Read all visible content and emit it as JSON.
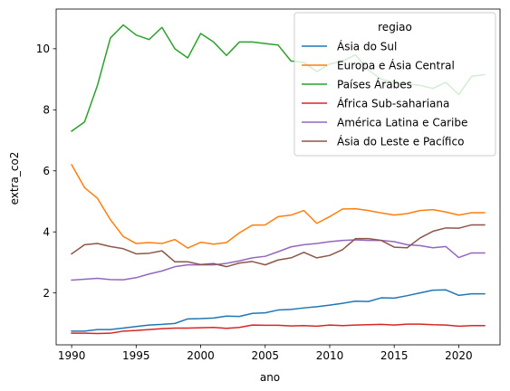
{
  "chart_data": {
    "type": "line",
    "title": "",
    "xlabel": "ano",
    "ylabel": "extra_co2",
    "xlim": [
      1988.8,
      2023.2
    ],
    "ylim": [
      0.3,
      11.3
    ],
    "xticks": [
      1990,
      1995,
      2000,
      2005,
      2010,
      2015,
      2020
    ],
    "yticks": [
      2,
      4,
      6,
      8,
      10
    ],
    "grid": false,
    "legend": {
      "title": "regiao",
      "placement": "top-right"
    },
    "x": [
      1990,
      1991,
      1992,
      1993,
      1994,
      1995,
      1996,
      1997,
      1998,
      1999,
      2000,
      2001,
      2002,
      2003,
      2004,
      2005,
      2006,
      2007,
      2008,
      2009,
      2010,
      2011,
      2012,
      2013,
      2014,
      2015,
      2016,
      2017,
      2018,
      2019,
      2020,
      2021,
      2022
    ],
    "series": [
      {
        "name": "Ásia do Sul",
        "color": "#1f77b4",
        "values": [
          0.75,
          0.75,
          0.8,
          0.8,
          0.85,
          0.9,
          0.95,
          0.97,
          1.0,
          1.15,
          1.16,
          1.18,
          1.24,
          1.23,
          1.33,
          1.35,
          1.44,
          1.46,
          1.51,
          1.55,
          1.6,
          1.66,
          1.73,
          1.72,
          1.84,
          1.83,
          1.91,
          2.0,
          2.09,
          2.1,
          1.92,
          1.97,
          1.97
        ]
      },
      {
        "name": "Europa e Ásia Central",
        "color": "#ff7f0e",
        "values": [
          6.2,
          5.45,
          5.1,
          4.4,
          3.85,
          3.62,
          3.65,
          3.62,
          3.75,
          3.47,
          3.66,
          3.6,
          3.65,
          3.97,
          4.22,
          4.23,
          4.5,
          4.55,
          4.7,
          4.28,
          4.5,
          4.75,
          4.76,
          4.7,
          4.62,
          4.55,
          4.6,
          4.7,
          4.73,
          4.65,
          4.55,
          4.63,
          4.63
        ]
      },
      {
        "name": "Países Árabes",
        "color": "#2ca02c",
        "values": [
          7.3,
          7.6,
          8.8,
          10.35,
          10.78,
          10.45,
          10.3,
          10.7,
          10.0,
          9.7,
          10.5,
          10.22,
          9.78,
          10.22,
          10.22,
          10.17,
          10.12,
          9.6,
          9.55,
          9.25,
          9.5,
          9.6,
          9.8,
          9.3,
          9.0,
          8.9,
          8.85,
          8.8,
          8.7,
          8.9,
          8.5,
          9.1,
          9.15
        ]
      },
      {
        "name": "África Sub-sahariana",
        "color": "#d62728",
        "values": [
          0.68,
          0.68,
          0.67,
          0.68,
          0.75,
          0.77,
          0.8,
          0.83,
          0.85,
          0.85,
          0.86,
          0.87,
          0.84,
          0.87,
          0.95,
          0.94,
          0.94,
          0.92,
          0.93,
          0.91,
          0.95,
          0.93,
          0.95,
          0.96,
          0.97,
          0.95,
          0.98,
          0.98,
          0.96,
          0.95,
          0.91,
          0.93,
          0.93
        ]
      },
      {
        "name": "América Latina e Caribe",
        "color": "#9467bd",
        "values": [
          2.42,
          2.45,
          2.48,
          2.44,
          2.43,
          2.5,
          2.62,
          2.72,
          2.86,
          2.92,
          2.92,
          2.92,
          2.97,
          3.05,
          3.15,
          3.2,
          3.35,
          3.51,
          3.58,
          3.62,
          3.68,
          3.72,
          3.74,
          3.72,
          3.72,
          3.68,
          3.58,
          3.55,
          3.48,
          3.52,
          3.16,
          3.31,
          3.31
        ]
      },
      {
        "name": "Ásia do Leste e Pacífico",
        "color": "#8c564b",
        "values": [
          3.28,
          3.58,
          3.62,
          3.52,
          3.45,
          3.28,
          3.3,
          3.38,
          3.02,
          3.02,
          2.93,
          2.96,
          2.86,
          2.98,
          3.03,
          2.92,
          3.08,
          3.15,
          3.33,
          3.15,
          3.23,
          3.42,
          3.78,
          3.78,
          3.72,
          3.5,
          3.48,
          3.8,
          4.02,
          4.13,
          4.12,
          4.23,
          4.23
        ]
      }
    ]
  }
}
